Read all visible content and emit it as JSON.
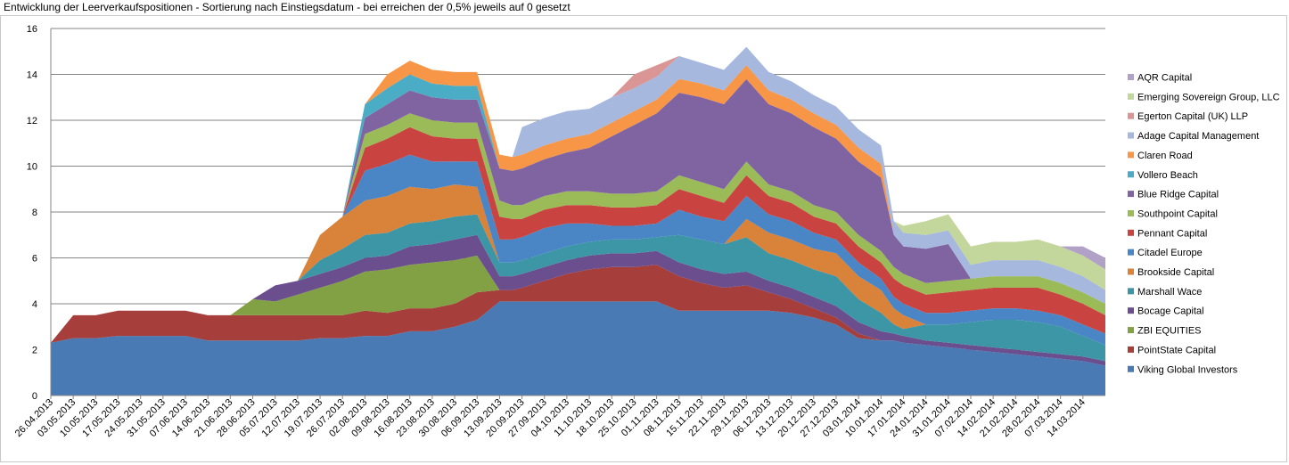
{
  "title": "Entwicklung der Leerverkaufspositionen - Sortierung nach Einstiegsdatum - bei erreichen der 0,5% jeweils auf 0 gesetzt",
  "chart_data": {
    "type": "area",
    "stacked": true,
    "title": "Entwicklung der Leerverkaufspositionen - Sortierung nach Einstiegsdatum - bei erreichen der 0,5% jeweils auf 0 gesetzt",
    "ylim": [
      0,
      16
    ],
    "yticks": [
      0,
      2,
      4,
      6,
      8,
      10,
      12,
      14,
      16
    ],
    "grid": true,
    "legend_position": "right",
    "x_labels": [
      "26.04.2013",
      "03.05.2013",
      "10.05.2013",
      "17.05.2013",
      "24.05.2013",
      "31.05.2013",
      "07.06.2013",
      "14.06.2013",
      "21.06.2013",
      "28.06.2013",
      "05.07.2013",
      "12.07.2013",
      "19.07.2013",
      "26.07.2013",
      "02.08.2013",
      "09.08.2013",
      "16.08.2013",
      "23.08.2013",
      "30.08.2013",
      "06.09.2013",
      "13.09.2013",
      "20.09.2013",
      "27.09.2013",
      "04.10.2013",
      "11.10.2013",
      "18.10.2013",
      "25.10.2013",
      "01.11.2013",
      "08.11.2013",
      "15.11.2013",
      "22.11.2013",
      "29.11.2013",
      "06.12.2013",
      "13.12.2013",
      "20.12.2013",
      "27.12.2013",
      "03.01.2014",
      "10.01.2014",
      "17.01.2014",
      "24.01.2014",
      "31.01.2014",
      "07.02.2014",
      "14.02.2014",
      "21.02.2014",
      "28.02.2014",
      "07.03.2014",
      "14.03.2014"
    ],
    "x_values": [
      "26.04.2013",
      "03.05.2013",
      "10.05.2013",
      "17.05.2013",
      "24.05.2013",
      "31.05.2013",
      "07.06.2013",
      "14.06.2013",
      "21.06.2013",
      "28.06.2013",
      "05.07.2013",
      "12.07.2013",
      "19.07.2013",
      "26.07.2013",
      "02.08.2013",
      "09.08.2013",
      "16.08.2013",
      "23.08.2013",
      "30.08.2013",
      "06.09.2013",
      "13.09.2013",
      "17.09.2013",
      "20.09.2013",
      "27.09.2013",
      "04.10.2013",
      "11.10.2013",
      "18.10.2013",
      "25.10.2013",
      "01.11.2013",
      "08.11.2013",
      "15.11.2013",
      "22.11.2013",
      "29.11.2013",
      "06.12.2013",
      "13.12.2013",
      "20.12.2013",
      "27.12.2013",
      "03.01.2014",
      "10.01.2014",
      "14.01.2014",
      "17.01.2014",
      "24.01.2014",
      "31.01.2014",
      "07.02.2014",
      "14.02.2014",
      "21.02.2014",
      "28.02.2014",
      "07.03.2014",
      "14.03.2014",
      "21.03.2014"
    ],
    "series": [
      {
        "name": "Viking Global Investors",
        "color": "#4a7ab4",
        "values": [
          2.3,
          2.5,
          2.5,
          2.6,
          2.6,
          2.6,
          2.6,
          2.4,
          2.4,
          2.4,
          2.4,
          2.4,
          2.5,
          2.5,
          2.6,
          2.6,
          2.8,
          2.8,
          3.0,
          3.3,
          4.1,
          4.1,
          4.1,
          4.1,
          4.1,
          4.1,
          4.1,
          4.1,
          4.1,
          3.7,
          3.7,
          3.7,
          3.7,
          3.7,
          3.6,
          3.4,
          3.1,
          2.5,
          2.4,
          2.4,
          2.3,
          2.2,
          2.1,
          2.0,
          1.9,
          1.8,
          1.7,
          1.6,
          1.5,
          1.3
        ]
      },
      {
        "name": "PointState Capital",
        "color": "#a63e3b",
        "values": [
          0,
          1.0,
          1.0,
          1.1,
          1.1,
          1.1,
          1.1,
          1.1,
          1.1,
          1.1,
          1.1,
          1.1,
          1.0,
          1.0,
          1.1,
          1.0,
          1.0,
          1.0,
          1.0,
          1.2,
          0.5,
          0.5,
          0.6,
          0.9,
          1.2,
          1.4,
          1.5,
          1.5,
          1.6,
          1.5,
          1.2,
          1.0,
          1.1,
          0.8,
          0.6,
          0.4,
          0.3,
          0.2,
          0,
          0,
          0,
          0,
          0,
          0,
          0,
          0,
          0,
          0,
          0,
          0
        ]
      },
      {
        "name": "ZBI EQUITIES",
        "color": "#82a144",
        "values": [
          0,
          0,
          0,
          0,
          0,
          0,
          0,
          0,
          0,
          0.7,
          0.6,
          0.9,
          1.2,
          1.5,
          1.7,
          1.9,
          1.9,
          2.0,
          1.9,
          1.6,
          0,
          0,
          0,
          0,
          0,
          0,
          0,
          0,
          0,
          0,
          0,
          0,
          0,
          0,
          0,
          0,
          0,
          0,
          0,
          0,
          0,
          0,
          0,
          0,
          0,
          0,
          0,
          0,
          0,
          0
        ]
      },
      {
        "name": "Bocage Capital",
        "color": "#6a4e8e",
        "values": [
          0,
          0,
          0,
          0,
          0,
          0,
          0,
          0,
          0,
          0,
          0.7,
          0.6,
          0.6,
          0.6,
          0.6,
          0.6,
          0.8,
          0.8,
          0.9,
          0.9,
          0.6,
          0.6,
          0.6,
          0.6,
          0.6,
          0.6,
          0.6,
          0.6,
          0.6,
          0.6,
          0.6,
          0.6,
          0.6,
          0.5,
          0.5,
          0.5,
          0.5,
          0.5,
          0.4,
          0.3,
          0.3,
          0.2,
          0.2,
          0.2,
          0.2,
          0.2,
          0.2,
          0.2,
          0.2,
          0.2
        ]
      },
      {
        "name": "Marshall Wace",
        "color": "#3d96a6",
        "values": [
          0,
          0,
          0,
          0,
          0,
          0,
          0,
          0,
          0,
          0,
          0,
          0,
          0.6,
          0.8,
          1.0,
          1.0,
          1.0,
          1.0,
          1.0,
          0.9,
          0.6,
          0.6,
          0.6,
          0.6,
          0.6,
          0.6,
          0.6,
          0.6,
          0.6,
          1.2,
          1.3,
          1.3,
          1.5,
          1.2,
          1.2,
          1.2,
          1.3,
          1.0,
          0.8,
          0.4,
          0.3,
          0.7,
          0.8,
          1.0,
          1.2,
          1.3,
          1.3,
          1.2,
          0.9,
          0.7
        ]
      },
      {
        "name": "Brookside Capital",
        "color": "#d8823a",
        "values": [
          0,
          0,
          0,
          0,
          0,
          0,
          0,
          0,
          0,
          0,
          0,
          0,
          1.1,
          1.4,
          1.5,
          1.6,
          1.6,
          1.4,
          1.4,
          1.2,
          0,
          0,
          0,
          0,
          0,
          0,
          0,
          0,
          0,
          0,
          0,
          0,
          0.8,
          0.9,
          0.9,
          0.9,
          1.0,
          1.0,
          1.0,
          0.7,
          0.6,
          0,
          0,
          0,
          0,
          0,
          0,
          0,
          0,
          0
        ]
      },
      {
        "name": "Citadel Europe",
        "color": "#4a86c6",
        "values": [
          0,
          0,
          0,
          0,
          0,
          0,
          0,
          0,
          0,
          0,
          0,
          0,
          0,
          0,
          1.3,
          1.4,
          1.4,
          1.2,
          1.0,
          1.1,
          1.0,
          1.0,
          1.0,
          1.1,
          1.0,
          0.8,
          0.6,
          0.6,
          0.6,
          1.1,
          1.0,
          1.0,
          1.0,
          0.8,
          0.8,
          0.7,
          0.6,
          0.6,
          0.5,
          0.5,
          0.5,
          0.5,
          0.5,
          0.5,
          0.5,
          0.5,
          0.5,
          0.5,
          0.5,
          0.5
        ]
      },
      {
        "name": "Pennant Capital",
        "color": "#c94440",
        "values": [
          0,
          0,
          0,
          0,
          0,
          0,
          0,
          0,
          0,
          0,
          0,
          0,
          0,
          0,
          1.0,
          1.1,
          1.2,
          1.1,
          1.0,
          1.0,
          1.0,
          0.9,
          0.8,
          0.8,
          0.8,
          0.8,
          0.8,
          0.8,
          0.8,
          0.9,
          0.9,
          0.8,
          0.9,
          0.8,
          0.8,
          0.7,
          0.7,
          0.7,
          0.7,
          0.8,
          0.8,
          0.8,
          0.9,
          0.9,
          0.9,
          0.9,
          1.0,
          0.9,
          0.9,
          0.8
        ]
      },
      {
        "name": "Southpoint Capital",
        "color": "#9bbb59",
        "values": [
          0,
          0,
          0,
          0,
          0,
          0,
          0,
          0,
          0,
          0,
          0,
          0,
          0,
          0,
          0.6,
          0.6,
          0.6,
          0.7,
          0.7,
          0.7,
          0.7,
          0.6,
          0.6,
          0.6,
          0.6,
          0.6,
          0.6,
          0.6,
          0.6,
          0.6,
          0.6,
          0.6,
          0.6,
          0.5,
          0.5,
          0.5,
          0.5,
          0.5,
          0.5,
          0.5,
          0.5,
          0.5,
          0.5,
          0.5,
          0.5,
          0.5,
          0.5,
          0.5,
          0.5,
          0.5
        ]
      },
      {
        "name": "Blue Ridge Capital",
        "color": "#8064a2",
        "values": [
          0,
          0,
          0,
          0,
          0,
          0,
          0,
          0,
          0,
          0,
          0,
          0,
          0,
          0,
          0.7,
          0.9,
          1.0,
          1.0,
          1.0,
          1.0,
          1.4,
          1.5,
          1.6,
          1.6,
          1.7,
          1.9,
          2.5,
          3.0,
          3.4,
          3.6,
          3.7,
          3.7,
          3.6,
          3.5,
          3.4,
          3.4,
          3.2,
          3.2,
          3.2,
          1.4,
          1.2,
          1.5,
          1.6,
          0,
          0,
          0,
          0,
          0,
          0,
          0
        ]
      },
      {
        "name": "Vollero Beach",
        "color": "#4bacc6",
        "values": [
          0,
          0,
          0,
          0,
          0,
          0,
          0,
          0,
          0,
          0,
          0,
          0,
          0,
          0,
          0.6,
          0.7,
          0.7,
          0.6,
          0.6,
          0.6,
          0,
          0,
          0,
          0,
          0,
          0,
          0,
          0,
          0,
          0,
          0,
          0,
          0,
          0,
          0,
          0,
          0,
          0,
          0,
          0,
          0,
          0,
          0,
          0,
          0,
          0,
          0,
          0,
          0,
          0
        ]
      },
      {
        "name": "Claren Road",
        "color": "#f79646",
        "values": [
          0,
          0,
          0,
          0,
          0,
          0,
          0,
          0,
          0,
          0,
          0,
          0,
          0,
          0,
          0,
          0.6,
          0.6,
          0.6,
          0.6,
          0.6,
          0.6,
          0.6,
          0.6,
          0.6,
          0.6,
          0.6,
          0.6,
          0.6,
          0.6,
          0.6,
          0.6,
          0.6,
          0.6,
          0.6,
          0.6,
          0.6,
          0.6,
          0.6,
          0.6,
          0,
          0,
          0,
          0,
          0,
          0,
          0,
          0,
          0,
          0,
          0
        ]
      },
      {
        "name": "Adage Capital Management",
        "color": "#a6b8de",
        "values": [
          0,
          0,
          0,
          0,
          0,
          0,
          0,
          0,
          0,
          0,
          0,
          0,
          0,
          0,
          0,
          0,
          0,
          0,
          0,
          0,
          0,
          0,
          1.2,
          1.2,
          1.2,
          1.1,
          1.1,
          1.0,
          1.0,
          1.0,
          0.9,
          0.9,
          0.8,
          0.8,
          0.8,
          0.8,
          0.8,
          0.8,
          0.8,
          0.6,
          0.6,
          0.6,
          0.6,
          0.6,
          0.7,
          0.7,
          0.7,
          0.7,
          0.7,
          0.6
        ]
      },
      {
        "name": "Egerton Capital (UK) LLP",
        "color": "#d99694",
        "values": [
          0,
          0,
          0,
          0,
          0,
          0,
          0,
          0,
          0,
          0,
          0,
          0,
          0,
          0,
          0,
          0,
          0,
          0,
          0,
          0,
          0,
          0,
          0,
          0,
          0,
          0,
          0,
          0.6,
          0.5,
          0,
          0,
          0,
          0,
          0,
          0,
          0,
          0,
          0,
          0,
          0,
          0,
          0,
          0,
          0,
          0,
          0,
          0,
          0,
          0,
          0
        ]
      },
      {
        "name": "Emerging Sovereign Group, LLC",
        "color": "#c3d69b",
        "values": [
          0,
          0,
          0,
          0,
          0,
          0,
          0,
          0,
          0,
          0,
          0,
          0,
          0,
          0,
          0,
          0,
          0,
          0,
          0,
          0,
          0,
          0,
          0,
          0,
          0,
          0,
          0,
          0,
          0,
          0,
          0,
          0,
          0,
          0,
          0,
          0,
          0,
          0,
          0,
          0,
          0.3,
          0.6,
          0.7,
          0.8,
          0.8,
          0.8,
          0.9,
          0.9,
          0.9,
          0.9
        ]
      },
      {
        "name": "AQR Capital",
        "color": "#b2a1c7",
        "values": [
          0,
          0,
          0,
          0,
          0,
          0,
          0,
          0,
          0,
          0,
          0,
          0,
          0,
          0,
          0,
          0,
          0,
          0,
          0,
          0,
          0,
          0,
          0,
          0,
          0,
          0,
          0,
          0,
          0,
          0,
          0,
          0,
          0,
          0,
          0,
          0,
          0,
          0,
          0,
          0,
          0,
          0,
          0,
          0,
          0,
          0,
          0,
          0,
          0.4,
          0.5
        ]
      }
    ]
  }
}
